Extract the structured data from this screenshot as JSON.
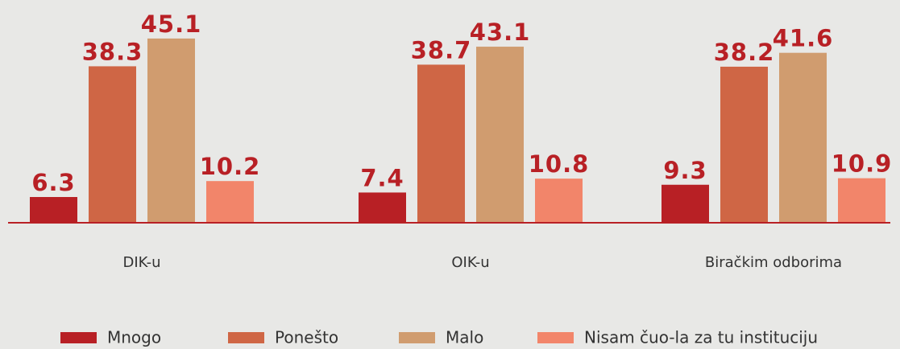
{
  "chart_data": {
    "type": "bar",
    "categories": [
      "DIK-u",
      "OIK-u",
      "Biračkim odborima"
    ],
    "series": [
      {
        "name": "Mnogo",
        "color": "#b82025",
        "values": [
          6.3,
          7.4,
          9.3
        ]
      },
      {
        "name": "Ponešto",
        "color": "#cf6645",
        "values": [
          38.3,
          38.7,
          38.2
        ]
      },
      {
        "name": "Malo",
        "color": "#d09c6f",
        "values": [
          45.1,
          43.1,
          41.6
        ]
      },
      {
        "name": "Nisam čuo-la za tu instituciju",
        "color": "#f2856a",
        "values": [
          10.2,
          10.8,
          10.9
        ]
      }
    ],
    "ylim": [
      0,
      50
    ],
    "grid": false
  }
}
